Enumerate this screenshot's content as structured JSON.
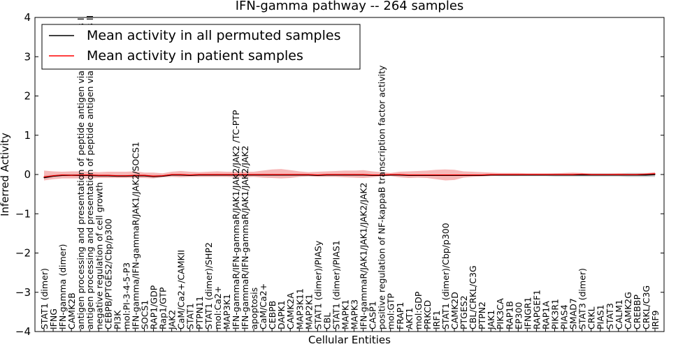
{
  "chart_data": {
    "type": "line",
    "title": "IFN-gamma pathway -- 264 samples",
    "xlabel": "Cellular Entities",
    "ylabel": "Inferred Activity",
    "ylim": [
      -4,
      4
    ],
    "yticks": [
      "−4",
      "−3",
      "−2",
      "−1",
      "0",
      "1",
      "2",
      "3",
      "4"
    ],
    "ytick_values": [
      -4,
      -3,
      -2,
      -1,
      0,
      1,
      2,
      3,
      4
    ],
    "legend": {
      "position": "upper-left",
      "entries": [
        {
          "label": "Mean activity in all permuted samples",
          "color": "#000000"
        },
        {
          "label": "Mean activity in patient samples",
          "color": "#ff0000"
        }
      ]
    },
    "categories": [
      "STAT1 (dimer)",
      "IFNG",
      "IFN-gamma (dimer)",
      "CAMK2B",
      "antigen processing and presentation of peptide antigen via MHC class I",
      "antigen processing and presentation of peptide antigen via MHC class II",
      "negative regulation of cell growth",
      "CEBPB/PTGES2/Cbp/p300",
      "PI3K",
      "mol:PI-3-4-5-P3",
      "IFN-gamma/IFN-gammaR/JAK1/JAK2/SOCS1",
      "SOCS1",
      "RAP1/GDP",
      "Rap1/GTP",
      "JAK2",
      "CaM/Ca2+/CAMKII",
      "STAT1",
      "PTPN11",
      "STAT1 (dimer)/SHP2",
      "mol:Ca2+",
      "MAP3K1",
      "IFN-gammaR/IFN-gammaR/JAK1/JAK2/JAK2 /TC-PTP",
      "IFN-gammaR/IFN-gammaR/JAK1/JAK2/JAK2",
      "apoptosis",
      "CaM/Ca2+",
      "CEBPB",
      "DAPK1",
      "CAMK2A",
      "MAP3K11",
      "MAP2K1",
      "STAT1 (dimer)/PIASy",
      "CBL",
      "STAT1 (dimer)/PIAS1",
      "MAPK1",
      "MAPK3",
      "IFN-gammaR/JAK1/JAK1/JAK2/JAK2",
      "CASP1",
      "positive regulation of NF-kappaB transcription factor activity",
      "mol:GTP",
      "FRAP1",
      "AKT1",
      "mol:GDP",
      "PRKCD",
      "IRF1",
      "STAT1 (dimer)/Cbp/p300",
      "CAMK2D",
      "PTGES2",
      "CBL/CRKL/C3G",
      "PTPN2",
      "JAK1",
      "PIK3CA",
      "RAP1B",
      "EP300",
      "IFNGR1",
      "RAPGEF1",
      "RAP1A",
      "PIK3R1",
      "PIAS4",
      "SMAD7",
      "STAT3 (dimer)",
      "CRKL",
      "PIAS1",
      "STAT3",
      "CALM1",
      "CAMK2G",
      "CREBBP",
      "CRKL/C3G",
      "IRF9"
    ],
    "series": [
      {
        "name": "Mean activity in all permuted samples",
        "color": "#000000",
        "values": [
          -0.08,
          -0.04,
          -0.02,
          -0.02,
          -0.02,
          -0.02,
          -0.03,
          -0.03,
          -0.04,
          -0.04,
          -0.03,
          -0.03,
          -0.05,
          -0.04,
          -0.01,
          -0.01,
          -0.02,
          -0.01,
          -0.01,
          -0.01,
          -0.01,
          -0.01,
          -0.01,
          -0.01,
          -0.01,
          -0.01,
          -0.01,
          -0.01,
          -0.01,
          -0.01,
          -0.02,
          -0.01,
          -0.01,
          -0.01,
          -0.01,
          -0.01,
          -0.02,
          -0.02,
          -0.01,
          -0.01,
          -0.02,
          -0.02,
          -0.02,
          -0.02,
          -0.02,
          -0.02,
          -0.02,
          -0.02,
          -0.02,
          -0.01,
          -0.01,
          -0.01,
          -0.01,
          -0.01,
          -0.01,
          -0.01,
          -0.01,
          -0.01,
          -0.01,
          -0.01,
          -0.01,
          -0.01,
          -0.01,
          -0.01,
          -0.01,
          -0.01,
          -0.01,
          0.0
        ]
      },
      {
        "name": "Mean activity in patient samples",
        "color": "#ff0000",
        "values": [
          -0.06,
          -0.03,
          -0.01,
          -0.02,
          -0.01,
          -0.01,
          -0.02,
          -0.02,
          -0.03,
          -0.03,
          -0.02,
          -0.02,
          -0.04,
          -0.03,
          0.0,
          0.0,
          -0.01,
          0.0,
          0.0,
          0.0,
          0.0,
          0.0,
          0.0,
          0.0,
          0.0,
          0.0,
          0.0,
          0.0,
          0.0,
          0.0,
          -0.01,
          0.0,
          0.0,
          0.0,
          0.0,
          0.0,
          -0.01,
          -0.01,
          0.0,
          0.0,
          -0.01,
          -0.01,
          -0.01,
          -0.01,
          -0.01,
          -0.01,
          -0.01,
          -0.01,
          -0.01,
          0.0,
          0.0,
          0.0,
          0.0,
          0.0,
          0.0,
          0.0,
          0.0,
          0.0,
          0.0,
          0.01,
          0.0,
          0.0,
          0.0,
          0.0,
          0.0,
          0.0,
          0.01,
          0.02
        ]
      }
    ],
    "bands": [
      {
        "name": "Permuted samples spread",
        "color": "#b3b3b3",
        "lower": [
          -0.09,
          -0.06,
          -0.05,
          -0.05,
          -0.05,
          -0.05,
          -0.05,
          -0.05,
          -0.05,
          -0.05,
          -0.05,
          -0.05,
          -0.06,
          -0.05,
          -0.03,
          -0.03,
          -0.03,
          -0.03,
          -0.03,
          -0.03,
          -0.03,
          -0.03,
          -0.03,
          -0.03,
          -0.03,
          -0.03,
          -0.03,
          -0.03,
          -0.03,
          -0.03,
          -0.03,
          -0.03,
          -0.03,
          -0.03,
          -0.03,
          -0.03,
          -0.03,
          -0.03,
          -0.03,
          -0.03,
          -0.04,
          -0.04,
          -0.04,
          -0.04,
          -0.04,
          -0.04,
          -0.04,
          -0.04,
          -0.04,
          -0.03,
          -0.04,
          -0.04,
          -0.04,
          -0.04,
          -0.04,
          -0.04,
          -0.05,
          -0.05,
          -0.05,
          -0.05,
          -0.05,
          -0.05,
          -0.05,
          -0.05,
          -0.06,
          -0.06,
          -0.06,
          -0.06
        ],
        "upper": [
          -0.02,
          0.0,
          0.01,
          0.01,
          0.01,
          0.01,
          0.0,
          0.0,
          0.0,
          0.0,
          0.0,
          0.0,
          -0.01,
          0.0,
          0.01,
          0.01,
          0.01,
          0.01,
          0.01,
          0.01,
          0.01,
          0.01,
          0.01,
          0.01,
          0.01,
          0.01,
          0.01,
          0.01,
          0.01,
          0.01,
          0.01,
          0.01,
          0.01,
          0.01,
          0.01,
          0.01,
          0.01,
          0.01,
          0.01,
          0.01,
          0.01,
          0.01,
          0.01,
          0.01,
          0.01,
          0.01,
          0.01,
          0.01,
          0.01,
          0.01,
          0.02,
          0.02,
          0.02,
          0.02,
          0.02,
          0.02,
          0.03,
          0.03,
          0.03,
          0.03,
          0.03,
          0.03,
          0.03,
          0.03,
          0.04,
          0.04,
          0.04,
          0.04
        ]
      },
      {
        "name": "Patient samples spread",
        "color": "#f4a0a0",
        "lower": [
          -0.15,
          -0.12,
          -0.1,
          -0.1,
          -0.1,
          -0.1,
          -0.09,
          -0.09,
          -0.09,
          -0.09,
          -0.09,
          -0.09,
          -0.1,
          -0.07,
          -0.06,
          -0.07,
          -0.06,
          -0.06,
          -0.06,
          -0.06,
          -0.06,
          -0.07,
          -0.07,
          -0.06,
          -0.08,
          -0.09,
          -0.1,
          -0.09,
          -0.06,
          -0.05,
          -0.06,
          -0.06,
          -0.06,
          -0.07,
          -0.08,
          -0.09,
          -0.07,
          -0.05,
          -0.04,
          -0.07,
          -0.09,
          -0.08,
          -0.09,
          -0.12,
          -0.15,
          -0.14,
          -0.08,
          -0.06,
          -0.05,
          -0.04,
          -0.03,
          -0.03,
          -0.03,
          -0.02,
          -0.02,
          -0.02,
          -0.02,
          -0.02,
          -0.03,
          -0.02,
          -0.01,
          -0.01,
          -0.01,
          -0.01,
          -0.01,
          -0.01,
          -0.01,
          -0.01
        ],
        "upper": [
          0.1,
          0.08,
          0.07,
          0.08,
          0.08,
          0.07,
          0.06,
          0.07,
          0.07,
          0.07,
          0.08,
          0.05,
          0.05,
          0.03,
          0.07,
          0.09,
          0.07,
          0.06,
          0.07,
          0.08,
          0.07,
          0.07,
          0.07,
          0.07,
          0.1,
          0.13,
          0.14,
          0.11,
          0.08,
          0.06,
          0.07,
          0.08,
          0.09,
          0.1,
          0.1,
          0.11,
          0.08,
          0.06,
          0.04,
          0.07,
          0.08,
          0.09,
          0.1,
          0.12,
          0.13,
          0.12,
          0.08,
          0.07,
          0.06,
          0.05,
          0.04,
          0.04,
          0.04,
          0.03,
          0.03,
          0.03,
          0.03,
          0.04,
          0.05,
          0.04,
          0.02,
          0.02,
          0.02,
          0.03,
          0.02,
          0.02,
          0.03,
          0.06
        ]
      }
    ]
  }
}
